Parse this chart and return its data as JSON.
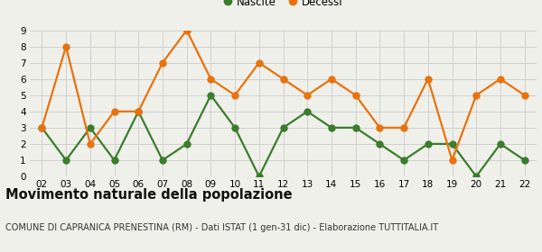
{
  "years": [
    "02",
    "03",
    "04",
    "05",
    "06",
    "07",
    "08",
    "09",
    "10",
    "11",
    "12",
    "13",
    "14",
    "15",
    "16",
    "17",
    "18",
    "19",
    "20",
    "21",
    "22"
  ],
  "nascite": [
    3,
    1,
    3,
    1,
    4,
    1,
    2,
    5,
    3,
    0,
    3,
    4,
    3,
    3,
    2,
    1,
    2,
    2,
    0,
    2,
    1
  ],
  "decessi": [
    3,
    8,
    2,
    4,
    4,
    7,
    9,
    6,
    5,
    7,
    6,
    5,
    6,
    5,
    3,
    3,
    6,
    1,
    5,
    6,
    5
  ],
  "nascite_color": "#3a7d2c",
  "decessi_color": "#e8720c",
  "bg_color": "#f0f0eb",
  "grid_color": "#d0d0d0",
  "title": "Movimento naturale della popolazione",
  "subtitle": "COMUNE DI CAPRANICA PRENESTINA (RM) - Dati ISTAT (1 gen-31 dic) - Elaborazione TUTTITALIA.IT",
  "legend_nascite": "Nascite",
  "legend_decessi": "Decessi",
  "ylim": [
    0,
    9
  ],
  "yticks": [
    0,
    1,
    2,
    3,
    4,
    5,
    6,
    7,
    8,
    9
  ],
  "marker_size": 5,
  "line_width": 1.6,
  "title_fontsize": 10.5,
  "subtitle_fontsize": 7.0,
  "tick_fontsize": 7.5,
  "legend_fontsize": 8.5
}
